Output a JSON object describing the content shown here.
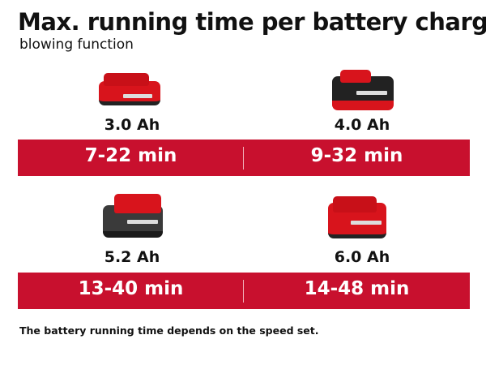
{
  "title": "Max. running time per battery charge",
  "subtitle": "blowing function",
  "colors": {
    "band": "#c8102e",
    "battery_red": "#d8141c",
    "battery_black": "#222222"
  },
  "batteries": [
    {
      "capacity": "3.0 Ah",
      "runtime": "7-22 min",
      "icon": "battery-pack-icon"
    },
    {
      "capacity": "4.0 Ah",
      "runtime": "9-32 min",
      "icon": "battery-pack-icon"
    },
    {
      "capacity": "5.2 Ah",
      "runtime": "13-40 min",
      "icon": "battery-pack-icon"
    },
    {
      "capacity": "6.0 Ah",
      "runtime": "14-48 min",
      "icon": "battery-pack-icon"
    }
  ],
  "footnote": "The battery running time depends on the speed set."
}
